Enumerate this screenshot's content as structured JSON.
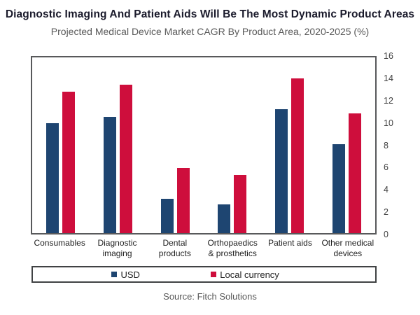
{
  "header": {
    "title": "Diagnostic Imaging And Patient Aids Will Be The Most Dynamic Product Areas",
    "subtitle": "Projected Medical Device Market CAGR By Product Area, 2020-2025 (%)"
  },
  "source": "Source: Fitch Solutions",
  "chart_data": {
    "type": "bar",
    "title": "Diagnostic Imaging And Patient Aids Will Be The Most Dynamic Product Areas",
    "subtitle": "Projected Medical Device Market CAGR By Product Area, 2020-2025 (%)",
    "categories": [
      "Consumables",
      "Diagnostic\nimaging",
      "Dental\nproducts",
      "Orthopaedics\n& prosthetics",
      "Patient aids",
      "Other medical\ndevices"
    ],
    "series": [
      {
        "name": "USD",
        "color": "#1E4571",
        "values": [
          10.0,
          10.6,
          3.1,
          2.6,
          11.3,
          8.1
        ]
      },
      {
        "name": "Local currency",
        "color": "#CE0E3C",
        "values": [
          12.9,
          13.5,
          5.9,
          5.3,
          14.1,
          10.9
        ]
      }
    ],
    "xlabel": "",
    "ylabel": "",
    "ylim": [
      0,
      16
    ],
    "yticks": [
      16,
      14,
      12,
      10,
      8,
      6,
      4,
      2,
      0
    ],
    "y_axis_side": "right",
    "grid": false,
    "legend_position": "bottom-box"
  }
}
